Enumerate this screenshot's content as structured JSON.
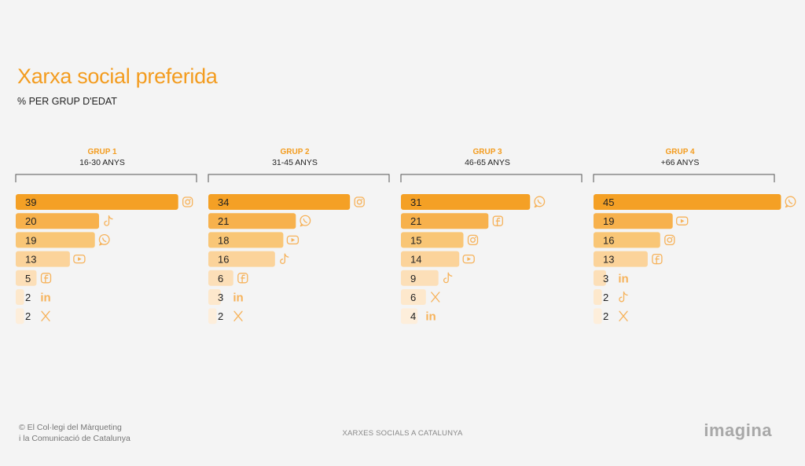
{
  "page": {
    "title": "Xarxa social preferida",
    "subtitle": "% PER GRUP D'EDAT"
  },
  "colors": {
    "title": "#f39c1f",
    "rank_colors": [
      "#f4a025",
      "#f7b14c",
      "#f9c676",
      "#fbd39a",
      "#fcdfb8",
      "#fde8cc",
      "#fdeedb"
    ],
    "icon": "#f6b25a"
  },
  "chart_data": [
    {
      "type": "bar",
      "orientation": "horizontal",
      "group_label": "GRUP 1",
      "age_range": "16-30 ANYS",
      "categories": [
        "Instagram",
        "TikTok",
        "WhatsApp",
        "YouTube",
        "Facebook",
        "LinkedIn",
        "X"
      ],
      "icons": [
        "instagram-icon",
        "tiktok-icon",
        "whatsapp-icon",
        "youtube-icon",
        "facebook-icon",
        "linkedin-icon",
        "x-icon"
      ],
      "values": [
        39,
        20,
        19,
        13,
        5,
        2,
        2
      ],
      "unit": "%"
    },
    {
      "type": "bar",
      "orientation": "horizontal",
      "group_label": "GRUP 2",
      "age_range": "31-45 ANYS",
      "categories": [
        "Instagram",
        "WhatsApp",
        "YouTube",
        "TikTok",
        "Facebook",
        "LinkedIn",
        "X"
      ],
      "icons": [
        "instagram-icon",
        "whatsapp-icon",
        "youtube-icon",
        "tiktok-icon",
        "facebook-icon",
        "linkedin-icon",
        "x-icon"
      ],
      "values": [
        34,
        21,
        18,
        16,
        6,
        3,
        2
      ],
      "unit": "%"
    },
    {
      "type": "bar",
      "orientation": "horizontal",
      "group_label": "GRUP 3",
      "age_range": "46-65 ANYS",
      "categories": [
        "WhatsApp",
        "Facebook",
        "Instagram",
        "YouTube",
        "TikTok",
        "X",
        "LinkedIn"
      ],
      "icons": [
        "whatsapp-icon",
        "facebook-icon",
        "instagram-icon",
        "youtube-icon",
        "tiktok-icon",
        "x-icon",
        "linkedin-icon"
      ],
      "values": [
        31,
        21,
        15,
        14,
        9,
        6,
        4
      ],
      "unit": "%"
    },
    {
      "type": "bar",
      "orientation": "horizontal",
      "group_label": "GRUP 4",
      "age_range": "+66 ANYS",
      "categories": [
        "WhatsApp",
        "YouTube",
        "Instagram",
        "Facebook",
        "LinkedIn",
        "TikTok",
        "X"
      ],
      "icons": [
        "whatsapp-icon",
        "youtube-icon",
        "instagram-icon",
        "facebook-icon",
        "linkedin-icon",
        "tiktok-icon",
        "x-icon"
      ],
      "values": [
        45,
        19,
        16,
        13,
        3,
        2,
        2
      ],
      "unit": "%"
    }
  ],
  "footer": {
    "copyright_line1": "© El Col·legi del Màrqueting",
    "copyright_line2": "i la Comunicació de Catalunya",
    "center": "XARXES SOCIALS A CATALUNYA",
    "logo": "imagina"
  }
}
